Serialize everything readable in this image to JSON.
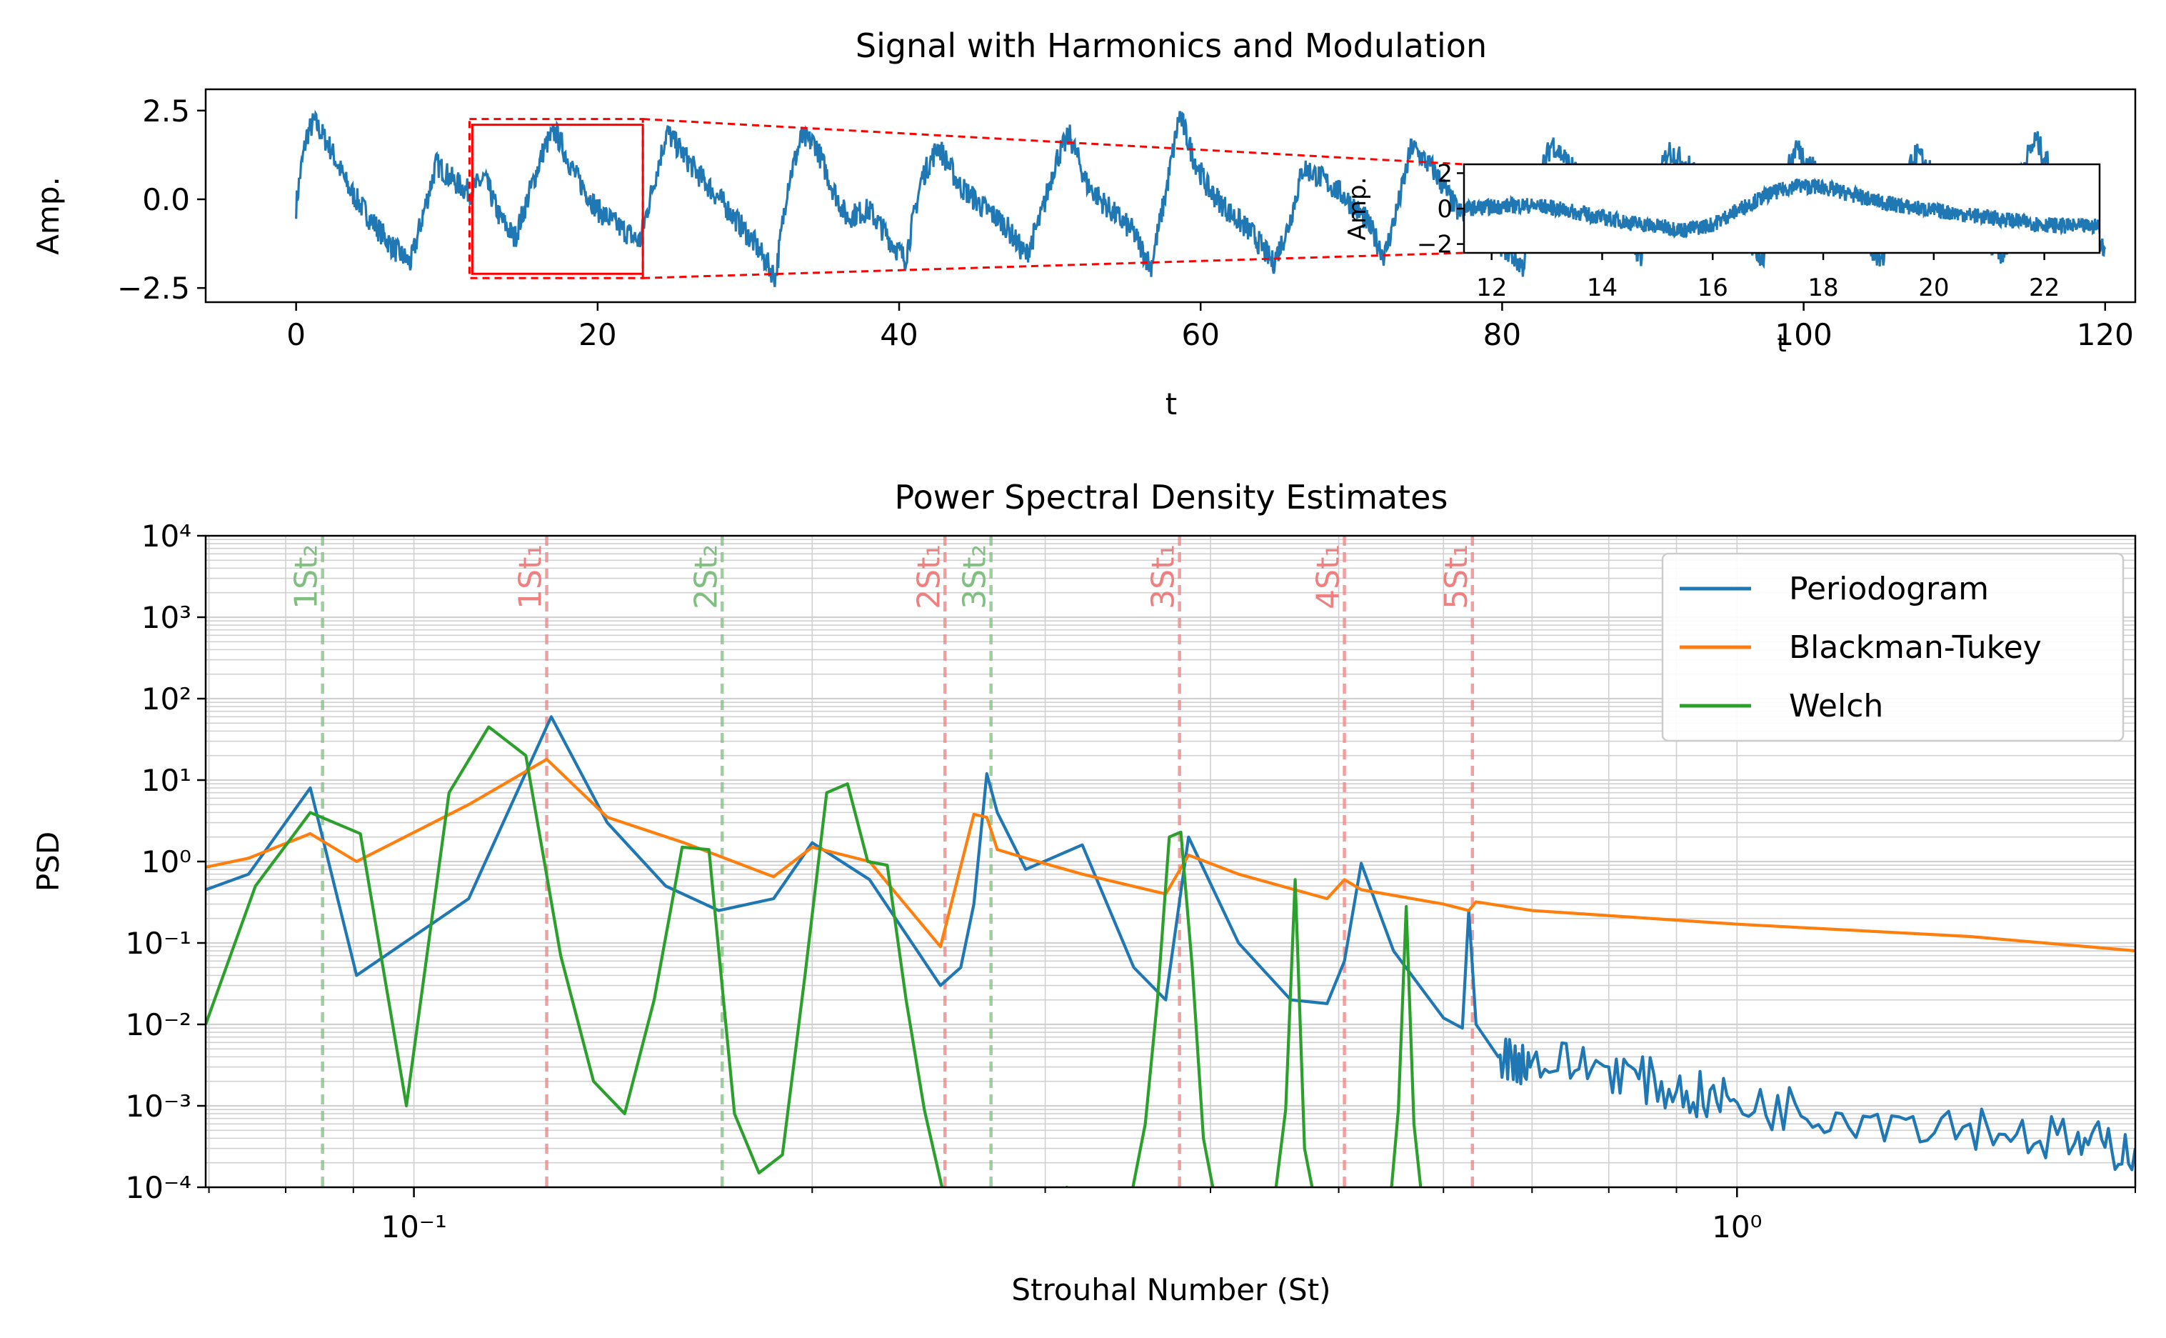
{
  "figure": {
    "colors": {
      "periodogram": "#1f77b4",
      "blackman_tukey": "#ff7f0e",
      "welch": "#2ca02c",
      "zoom_box": "#ff0000",
      "strouhal_1": "#f08080",
      "strouhal_2": "#7fbf7f",
      "grid": "#d0d0d0"
    }
  },
  "chart_data": [
    {
      "type": "line",
      "title": "Signal with Harmonics and Modulation",
      "xlabel": "t",
      "ylabel": "Amp.",
      "xlim": [
        -6,
        122
      ],
      "ylim": [
        -2.9,
        3.1
      ],
      "xticks": [
        0,
        20,
        40,
        60,
        80,
        100,
        120
      ],
      "yticks": [
        -2.5,
        0.0,
        2.5
      ],
      "xtick_labels": [
        "0",
        "20",
        "40",
        "60",
        "80",
        "100",
        "120"
      ],
      "ytick_labels": [
        "−2.5",
        "0.0",
        "2.5"
      ],
      "noise_band": 0.35,
      "series": [
        {
          "x": [
            0,
            0.3,
            0.7,
            1.2,
            2.2,
            3.5,
            5,
            6.5,
            7.6,
            8.5,
            9.3,
            10.5,
            11.5,
            12.5,
            13.5,
            14.5,
            15.5,
            16.5,
            17.2,
            18.5,
            20,
            21.5,
            22.8,
            23.8,
            24.6,
            26.5,
            28.5,
            30.5,
            31.8,
            32.6,
            33.5,
            34.4,
            35.5,
            36.5,
            38,
            39.5,
            40.4,
            41.5,
            42.6,
            44,
            45.5,
            47,
            48.4,
            49.4,
            50.4,
            51.3,
            52.5,
            54,
            55.5,
            56.7,
            57.7,
            58.6,
            59.5,
            60.5,
            62,
            63.5,
            64.8,
            65.8,
            66.8,
            68,
            69.5,
            71,
            72.2,
            73.2,
            74,
            75.5,
            77,
            78.5,
            80,
            81.4,
            82.2,
            83.3,
            85,
            86.5,
            88,
            89.2,
            90,
            91,
            92.5,
            94.5,
            96,
            97.3,
            98.3,
            99.5,
            101,
            102.5,
            104,
            105.2,
            106.2,
            107.5,
            109,
            110.5,
            112,
            113.4,
            114.2,
            115.4,
            117,
            118.5,
            120
          ],
          "y": [
            -0.2,
            0.8,
            1.8,
            2.2,
            1.5,
            0.3,
            -0.6,
            -1.4,
            -1.8,
            -0.3,
            1.0,
            0.5,
            0.2,
            0.6,
            -0.5,
            -1.1,
            0.2,
            1.5,
            1.9,
            0.7,
            -0.3,
            -0.8,
            -1.2,
            0.6,
            1.9,
            0.8,
            -0.2,
            -1.3,
            -2.2,
            0.4,
            1.7,
            1.6,
            0.4,
            -0.5,
            -0.3,
            -1.2,
            -1.7,
            0.6,
            1.5,
            0.4,
            -0.2,
            -0.7,
            -1.6,
            -0.5,
            1.1,
            1.8,
            0.4,
            -0.3,
            -0.9,
            -1.9,
            0.2,
            2.4,
            1.2,
            0.3,
            -0.4,
            -1.0,
            -1.8,
            -0.8,
            0.9,
            0.6,
            0.1,
            -0.6,
            -1.6,
            0.0,
            1.5,
            0.8,
            -0.3,
            -0.9,
            -1.3,
            -1.9,
            0.3,
            1.6,
            0.7,
            -0.2,
            -0.8,
            -1.6,
            0.0,
            1.4,
            0.9,
            -0.2,
            -1.0,
            -1.7,
            0.0,
            1.5,
            0.7,
            -0.2,
            -1.0,
            -1.8,
            0.0,
            1.3,
            0.4,
            -0.4,
            -1.0,
            -1.6,
            0.6,
            1.7,
            0.3,
            -0.8,
            -1.4
          ]
        }
      ],
      "zoom_region": {
        "x": [
          11.5,
          23
        ],
        "y": [
          -2.1,
          2.1
        ]
      }
    },
    {
      "type": "line",
      "title": "",
      "xlabel": "t",
      "ylabel": "Amp.",
      "xlim": [
        11.5,
        23
      ],
      "ylim": [
        -2.5,
        2.5
      ],
      "xticks": [
        12,
        14,
        16,
        18,
        20,
        22
      ],
      "yticks": [
        -2,
        0,
        2
      ],
      "xtick_labels": [
        "12",
        "14",
        "16",
        "18",
        "20",
        "22"
      ],
      "ytick_labels": [
        "−2",
        "0",
        "2"
      ],
      "noise_band": 0.45,
      "series": [
        {
          "x": [
            11.5,
            12,
            12.5,
            13,
            13.5,
            14,
            14.5,
            15,
            15.5,
            16,
            16.5,
            17,
            17.5,
            18,
            18.5,
            19,
            19.5,
            20,
            20.5,
            21,
            21.5,
            22,
            22.5,
            23
          ],
          "y": [
            0.0,
            0.1,
            0.2,
            0.1,
            -0.2,
            -0.5,
            -0.8,
            -1.0,
            -1.2,
            -0.9,
            0.0,
            0.8,
            1.3,
            1.2,
            0.8,
            0.4,
            0.1,
            -0.1,
            -0.3,
            -0.5,
            -0.7,
            -0.9,
            -1.0,
            -1.0
          ]
        }
      ]
    },
    {
      "type": "line",
      "title": "Power Spectral Density Estimates",
      "xlabel": "Strouhal Number (St)",
      "ylabel": "PSD",
      "xscale": "log",
      "yscale": "log",
      "xlim": [
        0.0696,
        2.0
      ],
      "ylim": [
        0.0001,
        10000
      ],
      "xtick_labels": [
        "10⁻¹",
        "10⁰"
      ],
      "ytick_labels": [
        "10⁻⁴",
        "10⁻³",
        "10⁻²",
        "10⁻¹",
        "10⁰",
        "10¹",
        "10²",
        "10³",
        "10⁴"
      ],
      "grid": true,
      "legend": {
        "placement": "top-right",
        "entries": [
          "Periodogram",
          "Blackman-Tukey",
          "Welch"
        ]
      },
      "vlines": [
        {
          "x": 0.0853,
          "label": "1St₂",
          "family": "St2"
        },
        {
          "x": 0.126,
          "label": "1St₁",
          "family": "St1"
        },
        {
          "x": 0.171,
          "label": "2St₂",
          "family": "St2"
        },
        {
          "x": 0.252,
          "label": "2St₁",
          "family": "St1"
        },
        {
          "x": 0.273,
          "label": "3St₂",
          "family": "St2"
        },
        {
          "x": 0.379,
          "label": "3St₁",
          "family": "St1"
        },
        {
          "x": 0.505,
          "label": "4St₁",
          "family": "St1"
        },
        {
          "x": 0.631,
          "label": "5St₁",
          "family": "St1"
        }
      ],
      "series": [
        {
          "name": "Periodogram",
          "x": [
            0.0696,
            0.075,
            0.0835,
            0.0905,
            0.11,
            0.127,
            0.14,
            0.155,
            0.17,
            0.187,
            0.2,
            0.221,
            0.25,
            0.259,
            0.265,
            0.271,
            0.276,
            0.29,
            0.32,
            0.35,
            0.37,
            0.385,
            0.42,
            0.46,
            0.49,
            0.505,
            0.52,
            0.55,
            0.6,
            0.62,
            0.627,
            0.635,
            0.66,
            0.7,
            0.8,
            0.9,
            1.0,
            1.2,
            1.5,
            1.8,
            2.0
          ],
          "y": [
            0.45,
            0.7,
            8.0,
            0.04,
            0.35,
            60,
            3.0,
            0.5,
            0.25,
            0.35,
            1.7,
            0.6,
            0.03,
            0.05,
            0.3,
            12,
            4.0,
            0.8,
            1.6,
            0.05,
            0.02,
            2.0,
            0.1,
            0.02,
            0.018,
            0.06,
            0.95,
            0.08,
            0.012,
            0.009,
            0.25,
            0.01,
            0.004,
            0.0035,
            0.003,
            0.0015,
            0.0011,
            0.0008,
            0.0006,
            0.00035,
            0.0003
          ]
        },
        {
          "name": "Blackman-Tukey",
          "x": [
            0.0696,
            0.075,
            0.0835,
            0.0905,
            0.11,
            0.126,
            0.14,
            0.16,
            0.187,
            0.2,
            0.221,
            0.25,
            0.265,
            0.271,
            0.276,
            0.29,
            0.32,
            0.37,
            0.385,
            0.42,
            0.49,
            0.505,
            0.52,
            0.6,
            0.627,
            0.635,
            0.7,
            1.0,
            1.5,
            2.0
          ],
          "y": [
            0.85,
            1.1,
            2.2,
            1.0,
            5.0,
            18,
            3.5,
            1.7,
            0.65,
            1.5,
            1.0,
            0.09,
            3.8,
            3.5,
            1.4,
            1.1,
            0.7,
            0.4,
            1.2,
            0.7,
            0.35,
            0.6,
            0.45,
            0.3,
            0.25,
            0.32,
            0.25,
            0.17,
            0.12,
            0.08
          ]
        },
        {
          "name": "Welch",
          "x": [
            0.0696,
            0.0759,
            0.0835,
            0.0911,
            0.0987,
            0.1063,
            0.1139,
            0.1215,
            0.1291,
            0.1367,
            0.1443,
            0.1519,
            0.1595,
            0.1671,
            0.1747,
            0.1823,
            0.1899,
            0.1975,
            0.2051,
            0.2127,
            0.2203,
            0.2279,
            0.2355,
            0.2431,
            0.2507,
            0.2583,
            0.2659,
            0.2735,
            0.2811,
            0.2887,
            0.2963,
            0.3039,
            0.3115,
            0.3191,
            0.3267,
            0.3343,
            0.3419,
            0.3495,
            0.3571,
            0.3647,
            0.3723,
            0.3799,
            0.3875,
            0.3951,
            0.4027,
            0.4103,
            0.4179,
            0.4255,
            0.4331,
            0.4407,
            0.4483,
            0.4559,
            0.4635,
            0.4711,
            0.4787,
            0.4863,
            0.4939,
            0.5015,
            0.5091,
            0.5167,
            0.5243,
            0.5319,
            0.5395,
            0.5471,
            0.5547,
            0.5623,
            0.5699,
            0.5775,
            0.5851,
            0.5927,
            0.6003,
            0.6079,
            0.6155,
            0.6231,
            0.6307,
            0.6383,
            0.6459,
            0.6535,
            0.6611,
            0.6687,
            0.6763,
            0.6839,
            0.6915
          ],
          "y": [
            0.01,
            0.5,
            4.0,
            2.2,
            0.001,
            7.0,
            45,
            20,
            0.07,
            0.002,
            0.0008,
            0.02,
            1.5,
            1.4,
            0.0008,
            0.00015,
            0.00025,
            0.04,
            7.0,
            9.0,
            1.0,
            0.9,
            0.02,
            0.0009,
            0.0001,
            8e-05,
            7e-05,
            8e-05,
            9e-05,
            6e-05,
            5e-05,
            7e-05,
            0.0001,
            8e-05,
            6e-05,
            5e-05,
            4e-05,
            0.0001,
            0.0006,
            0.02,
            2.0,
            2.3,
            0.05,
            0.0004,
            8e-05,
            6e-05,
            5e-05,
            5e-05,
            6e-05,
            8e-05,
            0.0001,
            0.0009,
            0.6,
            0.0003,
            8e-05,
            6e-05,
            8e-05,
            5e-05,
            6e-05,
            7e-05,
            8e-05,
            6e-05,
            5e-05,
            7e-05,
            0.0009,
            0.28,
            0.0006,
            8e-05,
            6e-05,
            7e-05,
            8e-05,
            6e-05,
            5e-05,
            7e-05,
            9e-05,
            8e-05,
            6e-05,
            7e-05,
            8e-05,
            6e-05,
            7e-05,
            6e-05,
            7e-05
          ]
        }
      ]
    }
  ]
}
